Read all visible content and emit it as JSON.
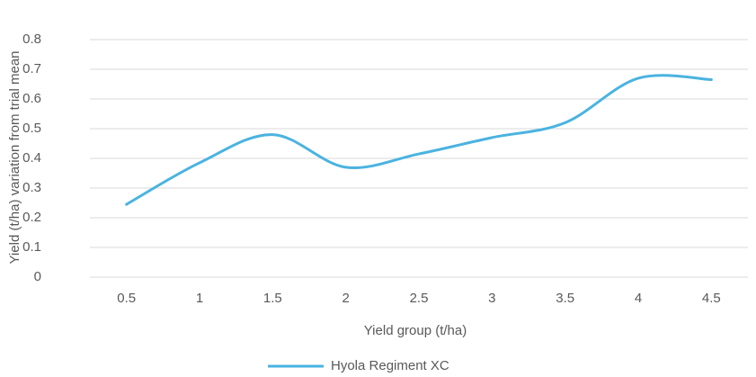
{
  "chart_data": {
    "type": "line",
    "x_label": "Yield group (t/ha)",
    "y_label": "Yield (t/ha) variation from trial mean",
    "categories": [
      "0.5",
      "1",
      "1.5",
      "2",
      "2.5",
      "3",
      "3.5",
      "4",
      "4.5"
    ],
    "series": [
      {
        "name": "Hyola Regiment XC",
        "color": "#4ab3e0",
        "values": [
          0.245,
          0.385,
          0.48,
          0.37,
          0.415,
          0.47,
          0.52,
          0.67,
          0.665
        ]
      }
    ],
    "ylim": [
      0,
      0.8
    ],
    "yticks": [
      0,
      0.1,
      0.2,
      0.3,
      0.4,
      0.5,
      0.6,
      0.7,
      0.8
    ],
    "grid": true,
    "smooth": true,
    "legend": "bottom"
  }
}
